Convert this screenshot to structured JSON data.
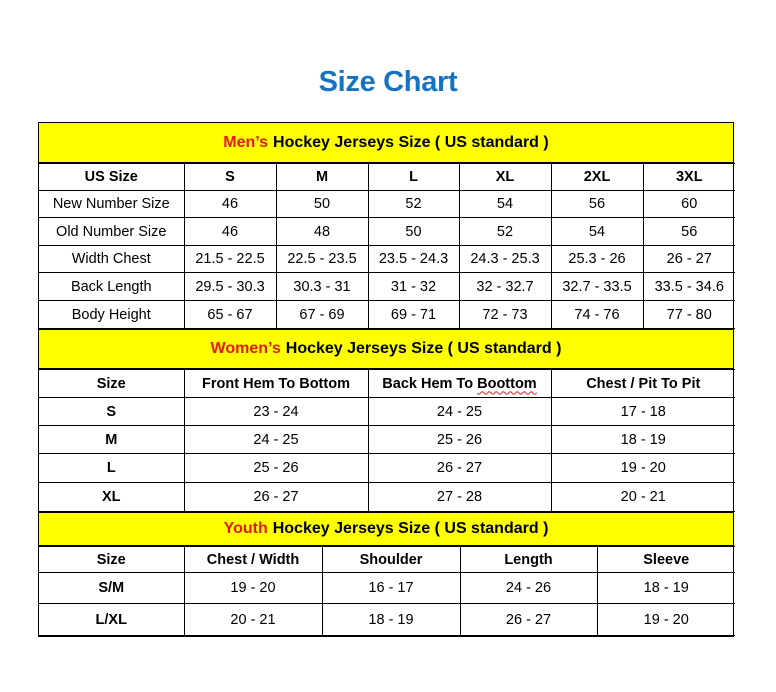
{
  "title": "Size Chart",
  "colors": {
    "title": "#1673c2",
    "header_bg": "#ffff00",
    "accent": "#e31b12"
  },
  "sections": [
    {
      "id": "men",
      "accent": "Men’s",
      "heading": "Hockey Jerseys Size ( US standard )",
      "header": [
        "US Size",
        "S",
        "M",
        "L",
        "XL",
        "2XL",
        "3XL"
      ],
      "rows": [
        [
          "New Number Size",
          "46",
          "50",
          "52",
          "54",
          "56",
          "60"
        ],
        [
          "Old Number Size",
          "46",
          "48",
          "50",
          "52",
          "54",
          "56"
        ],
        [
          "Width Chest",
          "21.5 - 22.5",
          "22.5 - 23.5",
          "23.5 - 24.3",
          "24.3 - 25.3",
          "25.3 - 26",
          "26 - 27"
        ],
        [
          "Back Length",
          "29.5 - 30.3",
          "30.3 - 31",
          "31 - 32",
          "32 - 32.7",
          "32.7 - 33.5",
          "33.5 - 34.6"
        ],
        [
          "Body Height",
          "65 - 67",
          "67 - 69",
          "69 - 71",
          "72 - 73",
          "74 - 76",
          "77 - 80"
        ]
      ]
    },
    {
      "id": "women",
      "accent": "Women’s",
      "heading": "Hockey Jerseys Size ( US standard )",
      "header": [
        "Size",
        "Front Hem To Bottom",
        "Back Hem To Boottom",
        "Chest / Pit To Pit"
      ],
      "rows": [
        [
          "S",
          "23 - 24",
          "24 - 25",
          "17 - 18"
        ],
        [
          "M",
          "24 - 25",
          "25 - 26",
          "18 - 19"
        ],
        [
          "L",
          "25 - 26",
          "26 - 27",
          "19 - 20"
        ],
        [
          "XL",
          "26 - 27",
          "27 - 28",
          "20 - 21"
        ]
      ]
    },
    {
      "id": "youth",
      "accent": "Youth",
      "heading": "Hockey Jerseys Size ( US standard )",
      "header": [
        "Size",
        "Chest / Width",
        "Shoulder",
        "Length",
        "Sleeve"
      ],
      "rows": [
        [
          "S/M",
          "19 - 20",
          "16 - 17",
          "24 - 26",
          "18 - 19"
        ],
        [
          "L/XL",
          "20 - 21",
          "18 - 19",
          "26 - 27",
          "19 - 20"
        ]
      ]
    }
  ]
}
